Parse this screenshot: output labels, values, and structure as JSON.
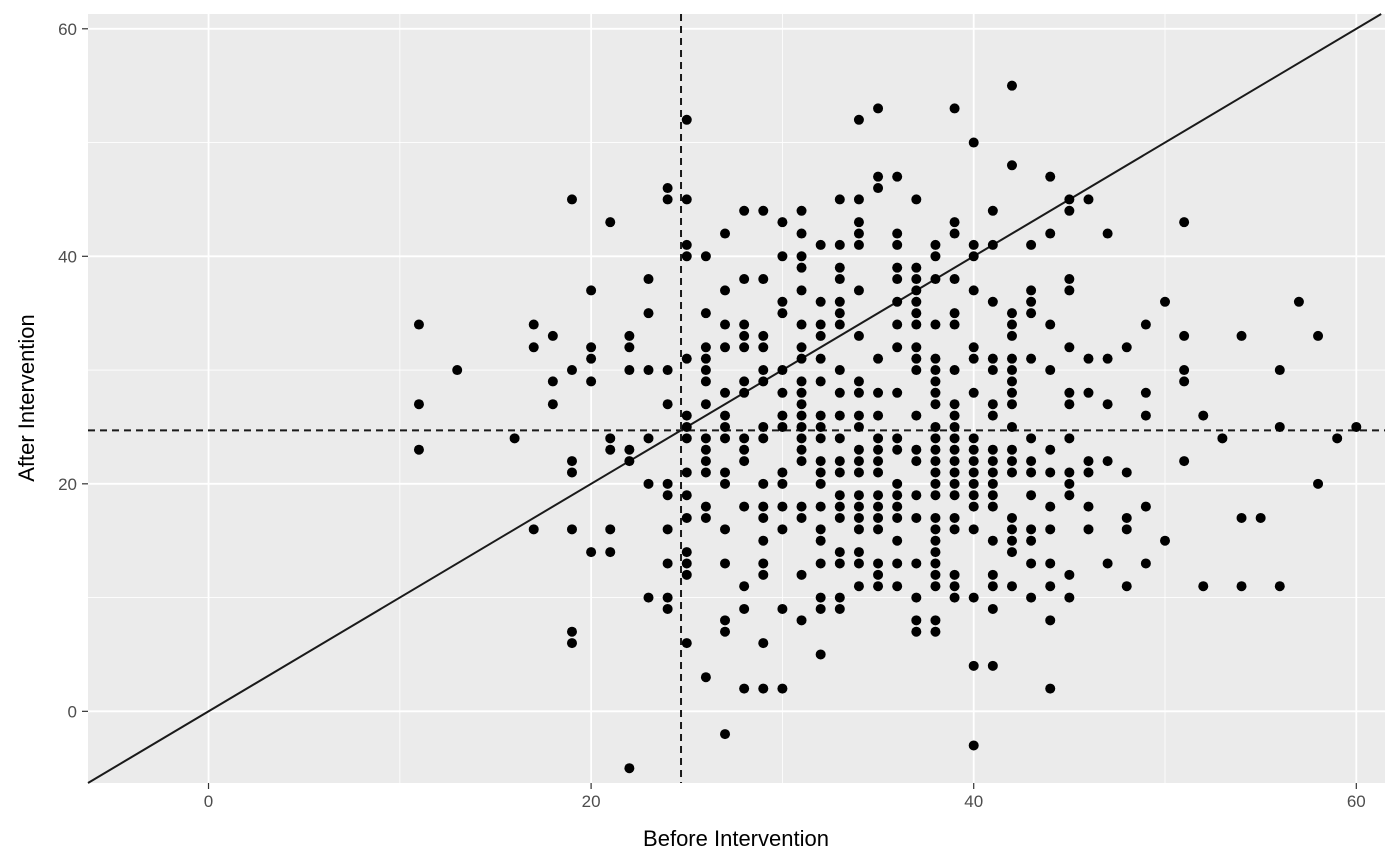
{
  "chart_data": {
    "type": "scatter",
    "title": "",
    "xlabel": "Before Intervention",
    "ylabel": "After Intervention",
    "xlim": [
      -6.3,
      61.5
    ],
    "ylim": [
      -6.3,
      61.3
    ],
    "x_ticks": [
      0,
      20,
      40,
      60
    ],
    "y_ticks": [
      0,
      20,
      40,
      60
    ],
    "x_tick_labels": [
      "0",
      "20",
      "40",
      "60"
    ],
    "y_tick_labels": [
      "0",
      "20",
      "40",
      "60"
    ],
    "grid": true,
    "legend": "none",
    "colors": {
      "panel_background": "#ebebeb",
      "grid_line": "#ffffff",
      "point": "#000000",
      "reference_line": "#1a1a1a",
      "tick_mark": "#333333"
    },
    "reference_lines": [
      {
        "kind": "identity",
        "slope": 1,
        "intercept": 0,
        "style": "solid"
      },
      {
        "kind": "vertical",
        "x": 24.7,
        "style": "dashed"
      },
      {
        "kind": "horizontal",
        "y": 24.7,
        "style": "dashed"
      }
    ],
    "points": [
      [
        11,
        34
      ],
      [
        11,
        27
      ],
      [
        11,
        23
      ],
      [
        13,
        30
      ],
      [
        16,
        24
      ],
      [
        17,
        34
      ],
      [
        17,
        32
      ],
      [
        17,
        16
      ],
      [
        18,
        33
      ],
      [
        18,
        29
      ],
      [
        18,
        27
      ],
      [
        19,
        45
      ],
      [
        19,
        30
      ],
      [
        19,
        22
      ],
      [
        19,
        21
      ],
      [
        19,
        16
      ],
      [
        19,
        7
      ],
      [
        19,
        6
      ],
      [
        20,
        37
      ],
      [
        20,
        32
      ],
      [
        20,
        31
      ],
      [
        20,
        29
      ],
      [
        20,
        14
      ],
      [
        21,
        43
      ],
      [
        21,
        24
      ],
      [
        21,
        23
      ],
      [
        21,
        16
      ],
      [
        21,
        14
      ],
      [
        22,
        33
      ],
      [
        22,
        32
      ],
      [
        22,
        30
      ],
      [
        22,
        23
      ],
      [
        22,
        22
      ],
      [
        22,
        -5
      ],
      [
        23,
        38
      ],
      [
        23,
        35
      ],
      [
        23,
        30
      ],
      [
        23,
        24
      ],
      [
        23,
        20
      ],
      [
        23,
        10
      ],
      [
        24,
        46
      ],
      [
        24,
        45
      ],
      [
        24,
        30
      ],
      [
        24,
        27
      ],
      [
        24,
        20
      ],
      [
        24,
        19
      ],
      [
        24,
        16
      ],
      [
        24,
        13
      ],
      [
        24,
        10
      ],
      [
        24,
        9
      ],
      [
        25,
        52
      ],
      [
        25,
        45
      ],
      [
        25,
        41
      ],
      [
        25,
        40
      ],
      [
        25,
        31
      ],
      [
        25,
        26
      ],
      [
        25,
        25
      ],
      [
        25,
        24
      ],
      [
        25,
        21
      ],
      [
        25,
        19
      ],
      [
        25,
        17
      ],
      [
        25,
        14
      ],
      [
        25,
        13
      ],
      [
        25,
        12
      ],
      [
        25,
        6
      ],
      [
        26,
        40
      ],
      [
        26,
        35
      ],
      [
        26,
        32
      ],
      [
        26,
        31
      ],
      [
        26,
        30
      ],
      [
        26,
        29
      ],
      [
        26,
        27
      ],
      [
        26,
        24
      ],
      [
        26,
        23
      ],
      [
        26,
        22
      ],
      [
        26,
        21
      ],
      [
        26,
        18
      ],
      [
        26,
        17
      ],
      [
        26,
        3
      ],
      [
        27,
        42
      ],
      [
        27,
        37
      ],
      [
        27,
        34
      ],
      [
        27,
        32
      ],
      [
        27,
        28
      ],
      [
        27,
        26
      ],
      [
        27,
        25
      ],
      [
        27,
        24
      ],
      [
        27,
        21
      ],
      [
        27,
        20
      ],
      [
        27,
        16
      ],
      [
        27,
        13
      ],
      [
        27,
        8
      ],
      [
        27,
        7
      ],
      [
        27,
        -2
      ],
      [
        28,
        44
      ],
      [
        28,
        38
      ],
      [
        28,
        34
      ],
      [
        28,
        33
      ],
      [
        28,
        32
      ],
      [
        28,
        29
      ],
      [
        28,
        28
      ],
      [
        28,
        24
      ],
      [
        28,
        23
      ],
      [
        28,
        22
      ],
      [
        28,
        18
      ],
      [
        28,
        11
      ],
      [
        28,
        9
      ],
      [
        28,
        2
      ],
      [
        29,
        44
      ],
      [
        29,
        38
      ],
      [
        29,
        33
      ],
      [
        29,
        32
      ],
      [
        29,
        30
      ],
      [
        29,
        29
      ],
      [
        29,
        25
      ],
      [
        29,
        24
      ],
      [
        29,
        20
      ],
      [
        29,
        18
      ],
      [
        29,
        17
      ],
      [
        29,
        15
      ],
      [
        29,
        13
      ],
      [
        29,
        12
      ],
      [
        29,
        6
      ],
      [
        29,
        2
      ],
      [
        30,
        43
      ],
      [
        30,
        40
      ],
      [
        30,
        36
      ],
      [
        30,
        35
      ],
      [
        30,
        30
      ],
      [
        30,
        28
      ],
      [
        30,
        26
      ],
      [
        30,
        25
      ],
      [
        30,
        21
      ],
      [
        30,
        20
      ],
      [
        30,
        18
      ],
      [
        30,
        16
      ],
      [
        30,
        9
      ],
      [
        30,
        2
      ],
      [
        31,
        44
      ],
      [
        31,
        42
      ],
      [
        31,
        40
      ],
      [
        31,
        39
      ],
      [
        31,
        37
      ],
      [
        31,
        34
      ],
      [
        31,
        32
      ],
      [
        31,
        31
      ],
      [
        31,
        29
      ],
      [
        31,
        28
      ],
      [
        31,
        27
      ],
      [
        31,
        26
      ],
      [
        31,
        25
      ],
      [
        31,
        24
      ],
      [
        31,
        23
      ],
      [
        31,
        22
      ],
      [
        31,
        18
      ],
      [
        31,
        17
      ],
      [
        31,
        12
      ],
      [
        31,
        8
      ],
      [
        32,
        41
      ],
      [
        32,
        36
      ],
      [
        32,
        34
      ],
      [
        32,
        33
      ],
      [
        32,
        31
      ],
      [
        32,
        29
      ],
      [
        32,
        26
      ],
      [
        32,
        25
      ],
      [
        32,
        24
      ],
      [
        32,
        22
      ],
      [
        32,
        21
      ],
      [
        32,
        20
      ],
      [
        32,
        18
      ],
      [
        32,
        16
      ],
      [
        32,
        15
      ],
      [
        32,
        13
      ],
      [
        32,
        10
      ],
      [
        32,
        9
      ],
      [
        32,
        5
      ],
      [
        33,
        45
      ],
      [
        33,
        41
      ],
      [
        33,
        39
      ],
      [
        33,
        38
      ],
      [
        33,
        36
      ],
      [
        33,
        35
      ],
      [
        33,
        34
      ],
      [
        33,
        30
      ],
      [
        33,
        28
      ],
      [
        33,
        26
      ],
      [
        33,
        24
      ],
      [
        33,
        22
      ],
      [
        33,
        21
      ],
      [
        33,
        19
      ],
      [
        33,
        18
      ],
      [
        33,
        17
      ],
      [
        33,
        14
      ],
      [
        33,
        13
      ],
      [
        33,
        10
      ],
      [
        33,
        9
      ],
      [
        34,
        52
      ],
      [
        34,
        45
      ],
      [
        34,
        43
      ],
      [
        34,
        42
      ],
      [
        34,
        41
      ],
      [
        34,
        37
      ],
      [
        34,
        33
      ],
      [
        34,
        29
      ],
      [
        34,
        28
      ],
      [
        34,
        26
      ],
      [
        34,
        25
      ],
      [
        34,
        23
      ],
      [
        34,
        22
      ],
      [
        34,
        21
      ],
      [
        34,
        19
      ],
      [
        34,
        18
      ],
      [
        34,
        17
      ],
      [
        34,
        16
      ],
      [
        34,
        14
      ],
      [
        34,
        13
      ],
      [
        34,
        11
      ],
      [
        35,
        53
      ],
      [
        35,
        47
      ],
      [
        35,
        46
      ],
      [
        35,
        31
      ],
      [
        35,
        28
      ],
      [
        35,
        26
      ],
      [
        35,
        24
      ],
      [
        35,
        23
      ],
      [
        35,
        22
      ],
      [
        35,
        21
      ],
      [
        35,
        19
      ],
      [
        35,
        18
      ],
      [
        35,
        17
      ],
      [
        35,
        16
      ],
      [
        35,
        13
      ],
      [
        35,
        12
      ],
      [
        35,
        11
      ],
      [
        36,
        47
      ],
      [
        36,
        42
      ],
      [
        36,
        41
      ],
      [
        36,
        39
      ],
      [
        36,
        38
      ],
      [
        36,
        36
      ],
      [
        36,
        34
      ],
      [
        36,
        32
      ],
      [
        36,
        28
      ],
      [
        36,
        24
      ],
      [
        36,
        23
      ],
      [
        36,
        20
      ],
      [
        36,
        19
      ],
      [
        36,
        18
      ],
      [
        36,
        17
      ],
      [
        36,
        15
      ],
      [
        36,
        13
      ],
      [
        36,
        11
      ],
      [
        37,
        45
      ],
      [
        37,
        39
      ],
      [
        37,
        38
      ],
      [
        37,
        37
      ],
      [
        37,
        36
      ],
      [
        37,
        35
      ],
      [
        37,
        34
      ],
      [
        37,
        32
      ],
      [
        37,
        31
      ],
      [
        37,
        30
      ],
      [
        37,
        26
      ],
      [
        37,
        23
      ],
      [
        37,
        22
      ],
      [
        37,
        19
      ],
      [
        37,
        17
      ],
      [
        37,
        13
      ],
      [
        37,
        10
      ],
      [
        37,
        8
      ],
      [
        37,
        7
      ],
      [
        38,
        41
      ],
      [
        38,
        40
      ],
      [
        38,
        38
      ],
      [
        38,
        34
      ],
      [
        38,
        31
      ],
      [
        38,
        30
      ],
      [
        38,
        29
      ],
      [
        38,
        28
      ],
      [
        38,
        27
      ],
      [
        38,
        25
      ],
      [
        38,
        24
      ],
      [
        38,
        23
      ],
      [
        38,
        22
      ],
      [
        38,
        21
      ],
      [
        38,
        20
      ],
      [
        38,
        19
      ],
      [
        38,
        17
      ],
      [
        38,
        16
      ],
      [
        38,
        15
      ],
      [
        38,
        14
      ],
      [
        38,
        13
      ],
      [
        38,
        12
      ],
      [
        38,
        11
      ],
      [
        38,
        8
      ],
      [
        38,
        7
      ],
      [
        39,
        53
      ],
      [
        39,
        43
      ],
      [
        39,
        42
      ],
      [
        39,
        38
      ],
      [
        39,
        35
      ],
      [
        39,
        34
      ],
      [
        39,
        30
      ],
      [
        39,
        27
      ],
      [
        39,
        26
      ],
      [
        39,
        25
      ],
      [
        39,
        24
      ],
      [
        39,
        23
      ],
      [
        39,
        22
      ],
      [
        39,
        21
      ],
      [
        39,
        20
      ],
      [
        39,
        19
      ],
      [
        39,
        17
      ],
      [
        39,
        16
      ],
      [
        39,
        12
      ],
      [
        39,
        11
      ],
      [
        39,
        10
      ],
      [
        40,
        50
      ],
      [
        40,
        41
      ],
      [
        40,
        40
      ],
      [
        40,
        37
      ],
      [
        40,
        32
      ],
      [
        40,
        31
      ],
      [
        40,
        28
      ],
      [
        40,
        24
      ],
      [
        40,
        23
      ],
      [
        40,
        22
      ],
      [
        40,
        21
      ],
      [
        40,
        20
      ],
      [
        40,
        19
      ],
      [
        40,
        18
      ],
      [
        40,
        16
      ],
      [
        40,
        10
      ],
      [
        40,
        4
      ],
      [
        40,
        -3
      ],
      [
        41,
        44
      ],
      [
        41,
        41
      ],
      [
        41,
        36
      ],
      [
        41,
        31
      ],
      [
        41,
        30
      ],
      [
        41,
        27
      ],
      [
        41,
        26
      ],
      [
        41,
        23
      ],
      [
        41,
        22
      ],
      [
        41,
        21
      ],
      [
        41,
        20
      ],
      [
        41,
        19
      ],
      [
        41,
        18
      ],
      [
        41,
        15
      ],
      [
        41,
        12
      ],
      [
        41,
        11
      ],
      [
        41,
        9
      ],
      [
        41,
        4
      ],
      [
        42,
        55
      ],
      [
        42,
        48
      ],
      [
        42,
        35
      ],
      [
        42,
        34
      ],
      [
        42,
        33
      ],
      [
        42,
        31
      ],
      [
        42,
        30
      ],
      [
        42,
        29
      ],
      [
        42,
        28
      ],
      [
        42,
        27
      ],
      [
        42,
        25
      ],
      [
        42,
        23
      ],
      [
        42,
        22
      ],
      [
        42,
        21
      ],
      [
        42,
        17
      ],
      [
        42,
        16
      ],
      [
        42,
        15
      ],
      [
        42,
        14
      ],
      [
        42,
        11
      ],
      [
        43,
        41
      ],
      [
        43,
        37
      ],
      [
        43,
        36
      ],
      [
        43,
        35
      ],
      [
        43,
        31
      ],
      [
        43,
        24
      ],
      [
        43,
        22
      ],
      [
        43,
        21
      ],
      [
        43,
        19
      ],
      [
        43,
        16
      ],
      [
        43,
        15
      ],
      [
        43,
        13
      ],
      [
        43,
        10
      ],
      [
        44,
        47
      ],
      [
        44,
        42
      ],
      [
        44,
        34
      ],
      [
        44,
        30
      ],
      [
        44,
        23
      ],
      [
        44,
        21
      ],
      [
        44,
        18
      ],
      [
        44,
        16
      ],
      [
        44,
        13
      ],
      [
        44,
        11
      ],
      [
        44,
        8
      ],
      [
        44,
        2
      ],
      [
        45,
        45
      ],
      [
        45,
        44
      ],
      [
        45,
        38
      ],
      [
        45,
        37
      ],
      [
        45,
        32
      ],
      [
        45,
        28
      ],
      [
        45,
        27
      ],
      [
        45,
        24
      ],
      [
        45,
        21
      ],
      [
        45,
        20
      ],
      [
        45,
        19
      ],
      [
        45,
        12
      ],
      [
        45,
        10
      ],
      [
        46,
        45
      ],
      [
        46,
        31
      ],
      [
        46,
        28
      ],
      [
        46,
        22
      ],
      [
        46,
        21
      ],
      [
        46,
        18
      ],
      [
        46,
        16
      ],
      [
        47,
        42
      ],
      [
        47,
        31
      ],
      [
        47,
        27
      ],
      [
        47,
        22
      ],
      [
        47,
        13
      ],
      [
        48,
        32
      ],
      [
        48,
        21
      ],
      [
        48,
        17
      ],
      [
        48,
        16
      ],
      [
        48,
        11
      ],
      [
        49,
        34
      ],
      [
        49,
        28
      ],
      [
        49,
        26
      ],
      [
        49,
        18
      ],
      [
        49,
        13
      ],
      [
        50,
        36
      ],
      [
        50,
        15
      ],
      [
        51,
        43
      ],
      [
        51,
        33
      ],
      [
        51,
        30
      ],
      [
        51,
        29
      ],
      [
        51,
        22
      ],
      [
        52,
        26
      ],
      [
        52,
        11
      ],
      [
        53,
        24
      ],
      [
        54,
        33
      ],
      [
        54,
        17
      ],
      [
        54,
        11
      ],
      [
        55,
        17
      ],
      [
        56,
        30
      ],
      [
        56,
        25
      ],
      [
        56,
        11
      ],
      [
        57,
        36
      ],
      [
        58,
        33
      ],
      [
        58,
        20
      ],
      [
        59,
        24
      ],
      [
        60,
        25
      ]
    ]
  }
}
